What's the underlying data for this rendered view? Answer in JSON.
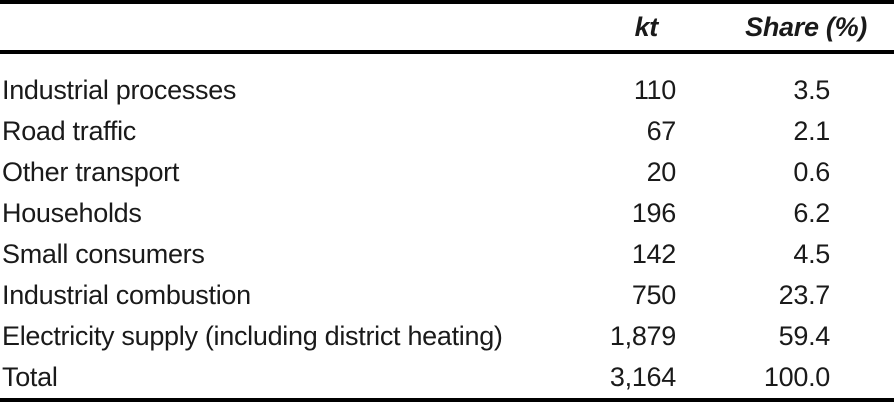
{
  "table": {
    "header": {
      "label": "",
      "kt": "kt",
      "share": "Share (%)"
    },
    "rows": [
      {
        "label": "Industrial processes",
        "kt": "110",
        "share": "3.5"
      },
      {
        "label": "Road traffic",
        "kt": "67",
        "share": "2.1"
      },
      {
        "label": "Other transport",
        "kt": "20",
        "share": "0.6"
      },
      {
        "label": "Households",
        "kt": "196",
        "share": "6.2"
      },
      {
        "label": "Small consumers",
        "kt": "142",
        "share": "4.5"
      },
      {
        "label": "Industrial combustion",
        "kt": "750",
        "share": "23.7"
      },
      {
        "label": "Electricity supply (including district heating)",
        "kt": "1,879",
        "share": "59.4"
      },
      {
        "label": "Total",
        "kt": "3,164",
        "share": "100.0"
      }
    ]
  },
  "colors": {
    "text": "#1a1a1a",
    "rule": "#000000",
    "background": "#ffffff"
  }
}
